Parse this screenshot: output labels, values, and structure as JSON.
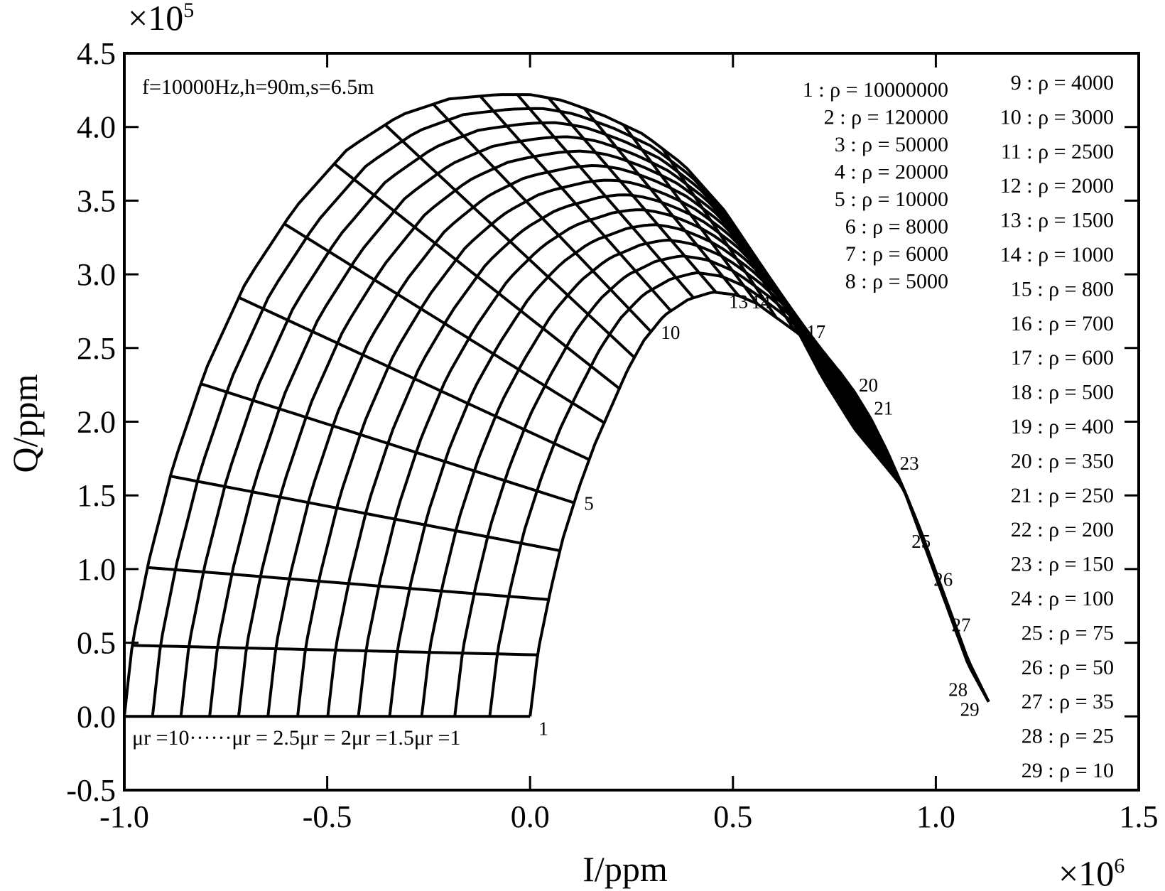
{
  "chart_data": {
    "type": "line",
    "title": "",
    "annotation": "f=10000Hz,h=90m,s=6.5m",
    "xlabel": "I/ppm",
    "ylabel": "Q/ppm",
    "x_scale_label": "×10^6",
    "y_scale_label": "×10^5",
    "xlim": [
      -1.0,
      1.5
    ],
    "ylim": [
      -0.5,
      4.5
    ],
    "x_ticks": [
      -1.0,
      -0.5,
      0.0,
      0.5,
      1.0,
      1.5
    ],
    "y_ticks": [
      -0.5,
      0.0,
      0.5,
      1.0,
      1.5,
      2.0,
      2.5,
      3.0,
      3.5,
      4.0,
      4.5
    ],
    "x_tick_labels": [
      "-1.0",
      "-0.5",
      "0.0",
      "0.5",
      "1.0",
      "1.5"
    ],
    "y_tick_labels": [
      "-0.5",
      "0.0",
      "0.5",
      "1.0",
      "1.5",
      "2.0",
      "2.5",
      "3.0",
      "3.5",
      "4.0",
      "4.5"
    ],
    "mu_label_text": "μr =10······μr = 2.5μr = 2μr =1.5μr =1",
    "mu_r_values": [
      10,
      2.5,
      2,
      1.5,
      1
    ],
    "envelope_inner": {
      "x": [
        0.0,
        0.02,
        0.05,
        0.08,
        0.12,
        0.16,
        0.2,
        0.24,
        0.28,
        0.33,
        0.39,
        0.45,
        0.51,
        0.56,
        0.61,
        0.66,
        0.71,
        0.76,
        0.8,
        0.84,
        0.88,
        0.92,
        0.96,
        1.0,
        1.04,
        1.08,
        1.13
      ],
      "y": [
        0.0,
        0.45,
        0.85,
        1.2,
        1.55,
        1.85,
        2.1,
        2.35,
        2.55,
        2.72,
        2.83,
        2.88,
        2.86,
        2.8,
        2.7,
        2.6,
        2.48,
        2.35,
        2.2,
        2.02,
        1.8,
        1.55,
        1.25,
        0.95,
        0.65,
        0.35,
        0.1
      ]
    },
    "envelope_outer": {
      "x": [
        -1.0,
        -0.98,
        -0.94,
        -0.88,
        -0.8,
        -0.7,
        -0.58,
        -0.45,
        -0.32,
        -0.2,
        -0.08,
        0.0,
        0.08,
        0.18,
        0.28,
        0.38,
        0.48,
        0.56,
        0.64,
        0.72,
        0.8,
        0.86,
        0.92,
        0.96,
        1.0,
        1.04,
        1.08,
        1.13
      ],
      "y": [
        0.0,
        0.5,
        1.05,
        1.7,
        2.35,
        2.95,
        3.45,
        3.85,
        4.08,
        4.19,
        4.22,
        4.22,
        4.18,
        4.08,
        3.95,
        3.74,
        3.43,
        3.1,
        2.72,
        2.3,
        1.95,
        1.75,
        1.55,
        1.28,
        0.98,
        0.68,
        0.38,
        0.1
      ]
    },
    "curve_labels_on_plot": [
      "1",
      "5",
      "10",
      "13",
      "14",
      "17",
      "20",
      "21",
      "23",
      "25",
      "26",
      "27",
      "28",
      "29"
    ],
    "legend": [
      "1 : ρ = 10000000",
      "2 : ρ = 120000",
      "3 : ρ = 50000",
      "4 : ρ = 20000",
      "5 : ρ = 10000",
      "6 : ρ = 8000",
      "7 : ρ = 6000",
      "8 : ρ = 5000",
      "9 : ρ = 4000",
      "10 : ρ = 3000",
      "11 : ρ = 2500",
      "12 : ρ = 2000",
      "13 : ρ = 1500",
      "14 : ρ = 1000",
      "15 : ρ = 800",
      "16 : ρ = 700",
      "17 : ρ = 600",
      "18 : ρ = 500",
      "19 : ρ = 400",
      "20 : ρ = 350",
      "21 : ρ = 250",
      "22 : ρ = 200",
      "23 : ρ = 150",
      "24 : ρ = 100",
      "25 : ρ = 75",
      "26 : ρ = 50",
      "27 : ρ = 35",
      "28 : ρ = 25",
      "29 : ρ = 10"
    ]
  }
}
